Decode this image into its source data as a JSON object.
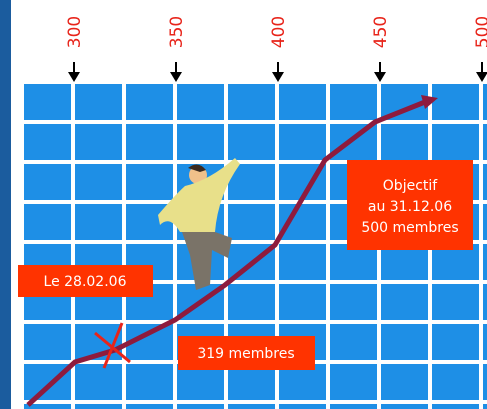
{
  "axis_labels": [
    "300",
    "350",
    "400",
    "450",
    "500"
  ],
  "start_label": "Le 28.02.06",
  "current_label": "319 membres",
  "target": {
    "lines": [
      "Objectif",
      "au 31.12.06",
      "500 membres"
    ]
  }
}
